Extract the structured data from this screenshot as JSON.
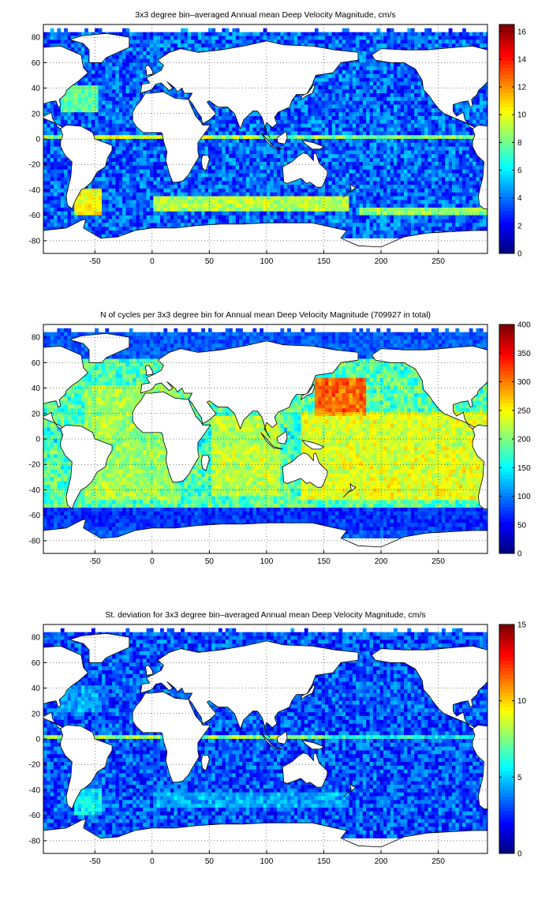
{
  "chart_data": [
    {
      "type": "heatmap",
      "title": "3x3 degree bin–averaged Annual mean Deep Velocity Magnitude, cm/s",
      "x_ticks": [
        -50,
        0,
        50,
        100,
        150,
        200,
        250
      ],
      "y_ticks": [
        80,
        60,
        40,
        20,
        0,
        -20,
        -40,
        -60,
        -80
      ],
      "xlim": [
        -95,
        293
      ],
      "ylim": [
        -90,
        90
      ],
      "colorbar_ticks": [
        0,
        2,
        4,
        6,
        8,
        10,
        12,
        14,
        16
      ],
      "colorbar_range": [
        0,
        16.5
      ],
      "colormap": "jet",
      "grid": true,
      "features": [
        {
          "lon_range": [
            -70,
            -45
          ],
          "lat_range": [
            -62,
            -40
          ],
          "value": 14
        },
        {
          "lon_range": [
            0,
            170
          ],
          "lat_range": [
            -58,
            -48
          ],
          "value": 12
        },
        {
          "lon_range": [
            180,
            293
          ],
          "lat_range": [
            -62,
            -55
          ],
          "value": 11
        },
        {
          "lon_range": [
            -60,
            50
          ],
          "lat_range": [
            -1,
            1
          ],
          "value": 11
        },
        {
          "lon_range": [
            150,
            293
          ],
          "lat_range": [
            -1,
            2
          ],
          "value": 8
        },
        {
          "lon_range": [
            -80,
            -50
          ],
          "lat_range": [
            20,
            40
          ],
          "value": 10
        }
      ]
    },
    {
      "type": "heatmap",
      "title": "N of cycles per 3x3 degree bin for Annual mean Deep Velocity Magnitude (709927 in total)",
      "x_ticks": [
        -50,
        0,
        50,
        100,
        150,
        200,
        250
      ],
      "y_ticks": [
        80,
        60,
        40,
        20,
        0,
        -20,
        -40,
        -60,
        -80
      ],
      "xlim": [
        -95,
        293
      ],
      "ylim": [
        -90,
        90
      ],
      "colorbar_ticks": [
        0,
        50,
        100,
        150,
        200,
        250,
        300,
        350,
        400
      ],
      "colorbar_range": [
        0,
        400
      ],
      "colormap": "jet",
      "grid": true,
      "features": [
        {
          "lon_range": [
            140,
            185
          ],
          "lat_range": [
            18,
            45
          ],
          "value": 380
        },
        {
          "lon_range": [
            130,
            293
          ],
          "lat_range": [
            -50,
            20
          ],
          "value": 270
        },
        {
          "lon_range": [
            -60,
            20
          ],
          "lat_range": [
            -50,
            40
          ],
          "value": 230
        },
        {
          "lon_range": [
            50,
            110
          ],
          "lat_range": [
            -45,
            15
          ],
          "value": 250
        },
        {
          "lon_range": [
            -95,
            293
          ],
          "lat_range": [
            -72,
            -55
          ],
          "value": 60
        }
      ]
    },
    {
      "type": "heatmap",
      "title": "St. deviation for 3x3 degree bin–averaged Annual mean Deep Velocity Magnitude, cm/s",
      "x_ticks": [
        -50,
        0,
        50,
        100,
        150,
        200,
        250
      ],
      "y_ticks": [
        80,
        60,
        40,
        20,
        0,
        -20,
        -40,
        -60,
        -80
      ],
      "xlim": [
        -95,
        293
      ],
      "ylim": [
        -90,
        90
      ],
      "colorbar_ticks": [
        0,
        5,
        10,
        15
      ],
      "colorbar_range": [
        0,
        15
      ],
      "colormap": "jet",
      "grid": true,
      "features": [
        {
          "lon_range": [
            -70,
            -45
          ],
          "lat_range": [
            -60,
            -40
          ],
          "value": 7
        },
        {
          "lon_range": [
            0,
            170
          ],
          "lat_range": [
            -55,
            -45
          ],
          "value": 5
        },
        {
          "lon_range": [
            150,
            293
          ],
          "lat_range": [
            -1,
            1
          ],
          "value": 5
        },
        {
          "lon_range": [
            -80,
            -50
          ],
          "lat_range": [
            20,
            40
          ],
          "value": 5
        }
      ]
    }
  ]
}
